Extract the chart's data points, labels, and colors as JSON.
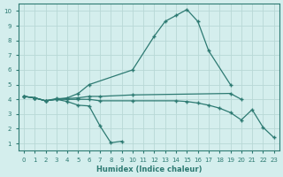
{
  "xlabel": "Humidex (Indice chaleur)",
  "background_color": "#d4eeed",
  "grid_color": "#b8d8d6",
  "line_color": "#2d7a72",
  "xlim": [
    -0.5,
    23.5
  ],
  "ylim": [
    0.5,
    10.5
  ],
  "xticks": [
    0,
    1,
    2,
    3,
    4,
    5,
    6,
    7,
    8,
    9,
    10,
    11,
    12,
    13,
    14,
    15,
    16,
    17,
    18,
    19,
    20,
    21,
    22,
    23
  ],
  "yticks": [
    1,
    2,
    3,
    4,
    5,
    6,
    7,
    8,
    9,
    10
  ],
  "line1": {
    "x": [
      0,
      1,
      2,
      3,
      4,
      5,
      6,
      10,
      12,
      13,
      14,
      15,
      16,
      17,
      19
    ],
    "y": [
      4.2,
      4.1,
      3.9,
      4.0,
      4.1,
      4.4,
      5.0,
      6.0,
      8.3,
      9.3,
      9.7,
      10.1,
      9.3,
      7.3,
      5.0
    ]
  },
  "line2": {
    "x": [
      0,
      1,
      2,
      3,
      4,
      5,
      6,
      7,
      10,
      19,
      20
    ],
    "y": [
      4.2,
      4.1,
      3.9,
      4.05,
      4.05,
      4.1,
      4.2,
      4.2,
      4.3,
      4.4,
      4.0
    ]
  },
  "line3": {
    "x": [
      0,
      1,
      2,
      3,
      4,
      5,
      6,
      7,
      8,
      9
    ],
    "y": [
      4.2,
      4.1,
      3.9,
      4.0,
      3.85,
      3.6,
      3.55,
      2.2,
      1.05,
      1.15
    ]
  },
  "line4": {
    "x": [
      0,
      1,
      2,
      3,
      4,
      5,
      6,
      7,
      10,
      14,
      15,
      16,
      17,
      18,
      19,
      20,
      21,
      22,
      23
    ],
    "y": [
      4.2,
      4.1,
      3.9,
      4.0,
      4.0,
      4.0,
      4.0,
      3.9,
      3.9,
      3.9,
      3.85,
      3.75,
      3.6,
      3.4,
      3.1,
      2.6,
      3.3,
      2.1,
      1.4
    ]
  }
}
